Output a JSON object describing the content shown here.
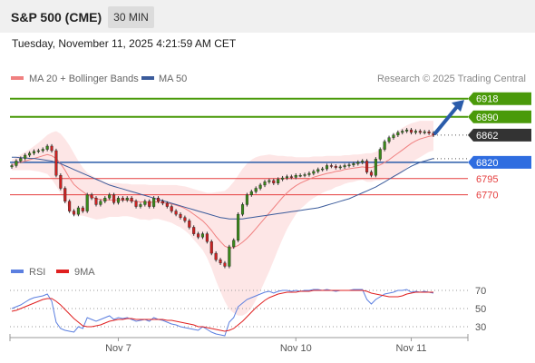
{
  "header": {
    "instrument": "S&P 500 (CME)",
    "timeframe": "30 MIN"
  },
  "timestamp": "Tuesday, November 11, 2025 4:21:59 AM CET",
  "legend": {
    "ma20": "MA 20 + Bollinger Bands",
    "ma50": "MA 50",
    "credit": "Research © 2025 Trading Central",
    "rsi": "RSI",
    "ma9": "9MA"
  },
  "colors": {
    "ma20": "#f08080",
    "ma50": "#3b5b9b",
    "band": "#fde0e0",
    "resistance": "#4a9a0a",
    "support_line": "#2a5caa",
    "support_label": "#2f6de0",
    "support_red": "#e53e3e",
    "rsi": "#5b7fe0",
    "ma9": "#e02020",
    "bull": "#3a8a1a",
    "bear": "#cc2222",
    "arrow": "#2a5caa"
  },
  "chart_data": [
    {
      "type": "candlestick",
      "title": "S&P 500 (CME) 30 MIN",
      "x_ticks": [
        "Nov 7",
        "Nov 10",
        "Nov 11"
      ],
      "ylim": [
        6648,
        6933
      ],
      "grid": false,
      "series": [
        {
          "name": "MA 20 + Bollinger Bands",
          "kind": "line"
        },
        {
          "name": "MA 50",
          "kind": "line"
        }
      ],
      "levels": [
        {
          "value": 6918,
          "kind": "resistance"
        },
        {
          "value": 6890,
          "kind": "resistance"
        },
        {
          "value": 6862,
          "kind": "current"
        },
        {
          "value": 6820,
          "kind": "pivot"
        },
        {
          "value": 6795,
          "kind": "support"
        },
        {
          "value": 6770,
          "kind": "support"
        }
      ],
      "close": [
        6815,
        6822,
        6826,
        6831,
        6834,
        6837,
        6838,
        6840,
        6845,
        6838,
        6800,
        6780,
        6760,
        6745,
        6740,
        6750,
        6745,
        6770,
        6765,
        6755,
        6760,
        6765,
        6770,
        6758,
        6765,
        6762,
        6765,
        6760,
        6752,
        6755,
        6760,
        6752,
        6765,
        6760,
        6757,
        6752,
        6745,
        6740,
        6735,
        6730,
        6720,
        6710,
        6705,
        6710,
        6698,
        6680,
        6670,
        6665,
        6660,
        6690,
        6700,
        6740,
        6755,
        6770,
        6775,
        6780,
        6785,
        6790,
        6792,
        6788,
        6794,
        6796,
        6798,
        6797,
        6800,
        6800,
        6801,
        6803,
        6806,
        6809,
        6810,
        6815,
        6814,
        6812,
        6813,
        6815,
        6816,
        6818,
        6820,
        6822,
        6805,
        6800,
        6825,
        6840,
        6852,
        6858,
        6862,
        6866,
        6868,
        6870,
        6866,
        6868,
        6866,
        6867,
        6865,
        6862
      ],
      "bb_mid": [
        6816,
        6818,
        6820,
        6822,
        6824,
        6826,
        6828,
        6830,
        6832,
        6830,
        6826,
        6818,
        6808,
        6796,
        6786,
        6780,
        6775,
        6770,
        6767,
        6764,
        6763,
        6762,
        6762,
        6762,
        6762,
        6762,
        6762,
        6761,
        6760,
        6759,
        6759,
        6758,
        6759,
        6759,
        6758,
        6757,
        6756,
        6754,
        6752,
        6749,
        6745,
        6740,
        6735,
        6730,
        6723,
        6715,
        6706,
        6698,
        6691,
        6688,
        6689,
        6692,
        6697,
        6703,
        6710,
        6718,
        6726,
        6734,
        6742,
        6750,
        6758,
        6766,
        6773,
        6779,
        6784,
        6788,
        6791,
        6794,
        6797,
        6799,
        6801,
        6803,
        6804,
        6806,
        6807,
        6809,
        6810,
        6811,
        6812,
        6813,
        6812,
        6812,
        6814,
        6816,
        6820,
        6824,
        6829,
        6834,
        6839,
        6844,
        6849,
        6853,
        6856,
        6858,
        6860,
        6861
      ],
      "bb_upper": [
        6824,
        6828,
        6832,
        6836,
        6840,
        6845,
        6850,
        6856,
        6862,
        6866,
        6868,
        6864,
        6856,
        6846,
        6834,
        6822,
        6812,
        6804,
        6800,
        6796,
        6793,
        6790,
        6788,
        6788,
        6788,
        6787,
        6787,
        6786,
        6786,
        6786,
        6786,
        6785,
        6785,
        6785,
        6785,
        6785,
        6785,
        6785,
        6784,
        6783,
        6781,
        6779,
        6777,
        6775,
        6773,
        6773,
        6774,
        6775,
        6776,
        6782,
        6790,
        6800,
        6810,
        6818,
        6824,
        6828,
        6830,
        6831,
        6832,
        6831,
        6830,
        6830,
        6829,
        6829,
        6828,
        6828,
        6828,
        6828,
        6829,
        6829,
        6829,
        6830,
        6830,
        6830,
        6830,
        6831,
        6831,
        6832,
        6832,
        6833,
        6834,
        6834,
        6836,
        6840,
        6846,
        6854,
        6862,
        6868,
        6873,
        6877,
        6880,
        6882,
        6884,
        6884,
        6884,
        6884
      ],
      "bb_lower": [
        6808,
        6808,
        6808,
        6808,
        6808,
        6807,
        6806,
        6804,
        6802,
        6794,
        6784,
        6772,
        6760,
        6746,
        6738,
        6738,
        6738,
        6736,
        6734,
        6732,
        6733,
        6734,
        6736,
        6736,
        6736,
        6737,
        6737,
        6736,
        6734,
        6732,
        6732,
        6731,
        6733,
        6733,
        6731,
        6729,
        6727,
        6723,
        6720,
        6715,
        6709,
        6701,
        6693,
        6685,
        6673,
        6657,
        6638,
        6621,
        6606,
        6594,
        6588,
        6584,
        6584,
        6588,
        6596,
        6608,
        6622,
        6637,
        6652,
        6669,
        6686,
        6702,
        6717,
        6729,
        6740,
        6748,
        6754,
        6760,
        6765,
        6769,
        6773,
        6776,
        6778,
        6782,
        6784,
        6787,
        6789,
        6790,
        6792,
        6793,
        6790,
        6790,
        6792,
        6792,
        6794,
        6794,
        6796,
        6800,
        6805,
        6811,
        6818,
        6824,
        6828,
        6832,
        6836,
        6838
      ],
      "ma50": [
        6828,
        6828,
        6827,
        6827,
        6826,
        6826,
        6825,
        6824,
        6823,
        6822,
        6820,
        6818,
        6815,
        6812,
        6809,
        6806,
        6803,
        6800,
        6797,
        6794,
        6791,
        6788,
        6785,
        6783,
        6781,
        6779,
        6777,
        6775,
        6773,
        6771,
        6769,
        6767,
        6765,
        6763,
        6761,
        6759,
        6757,
        6755,
        6753,
        6751,
        6749,
        6747,
        6745,
        6743,
        6741,
        6739,
        6737,
        6735,
        6734,
        6733,
        6733,
        6733,
        6733,
        6734,
        6735,
        6736,
        6737,
        6738,
        6739,
        6740,
        6741,
        6742,
        6743,
        6744,
        6745,
        6746,
        6747,
        6748,
        6749,
        6750,
        6752,
        6754,
        6756,
        6758,
        6760,
        6762,
        6764,
        6767,
        6770,
        6773,
        6776,
        6779,
        6782,
        6786,
        6790,
        6794,
        6798,
        6802,
        6806,
        6810,
        6814,
        6817,
        6820,
        6822,
        6824,
        6826
      ]
    },
    {
      "type": "line",
      "title": "RSI",
      "x_ticks": [
        "Nov 7",
        "Nov 10",
        "Nov 11"
      ],
      "y_ticks": [
        70,
        50,
        30
      ],
      "ylim": [
        20,
        80
      ],
      "series": [
        {
          "name": "RSI",
          "values": [
            50,
            52,
            54,
            57,
            60,
            62,
            63,
            64,
            66,
            58,
            35,
            28,
            26,
            25,
            24,
            30,
            28,
            40,
            38,
            36,
            38,
            40,
            42,
            38,
            40,
            39,
            40,
            38,
            36,
            37,
            38,
            36,
            40,
            38,
            37,
            35,
            33,
            32,
            30,
            29,
            28,
            27,
            26,
            30,
            27,
            24,
            22,
            21,
            20,
            35,
            40,
            52,
            56,
            60,
            62,
            64,
            66,
            68,
            69,
            67,
            69,
            70,
            70,
            69,
            70,
            69,
            70,
            70,
            71,
            71,
            70,
            71,
            70,
            69,
            70,
            70,
            70,
            71,
            71,
            71,
            60,
            55,
            60,
            63,
            66,
            67,
            68,
            70,
            70,
            71,
            68,
            69,
            68,
            69,
            68,
            67
          ]
        },
        {
          "name": "9MA",
          "values": [
            47,
            48,
            50,
            52,
            54,
            56,
            58,
            60,
            61,
            61,
            58,
            54,
            49,
            44,
            39,
            35,
            31,
            30,
            30,
            31,
            32,
            34,
            36,
            37,
            38,
            38,
            39,
            39,
            38,
            38,
            38,
            38,
            38,
            38,
            38,
            37,
            37,
            36,
            35,
            34,
            33,
            32,
            30,
            30,
            29,
            28,
            27,
            26,
            25,
            26,
            28,
            32,
            36,
            41,
            46,
            51,
            55,
            59,
            62,
            64,
            66,
            67,
            68,
            68,
            68,
            69,
            69,
            69,
            70,
            70,
            70,
            70,
            70,
            70,
            70,
            70,
            70,
            70,
            70,
            70,
            69,
            67,
            66,
            65,
            64,
            63,
            63,
            63,
            64,
            66,
            67,
            68,
            68,
            68,
            68,
            68
          ]
        }
      ]
    }
  ]
}
